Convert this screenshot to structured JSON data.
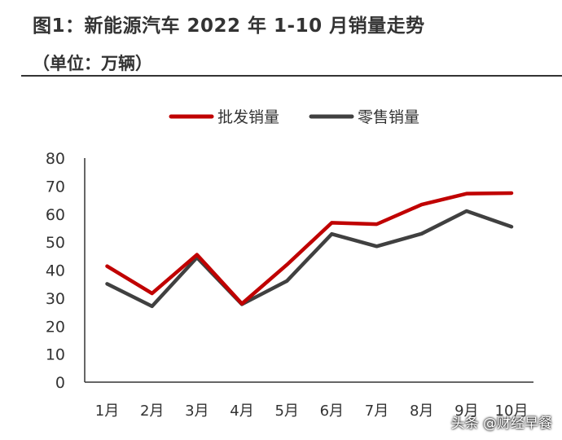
{
  "chart_data": {
    "type": "line",
    "title": "图1：新能源汽车 2022 年 1-10 月销量走势",
    "subtitle": "（单位：万辆）",
    "categories": [
      "1月",
      "2月",
      "3月",
      "4月",
      "5月",
      "6月",
      "7月",
      "8月",
      "9月",
      "10月"
    ],
    "series": [
      {
        "name": "批发销量",
        "color": "#c00000",
        "values": [
          41.4,
          31.7,
          45.5,
          28.0,
          41.9,
          56.9,
          56.4,
          63.4,
          67.3,
          67.5
        ]
      },
      {
        "name": "零售销量",
        "color": "#404040",
        "values": [
          35.1,
          27.1,
          44.5,
          27.8,
          36.1,
          52.9,
          48.5,
          53.0,
          61.1,
          55.5
        ]
      }
    ],
    "ylim": [
      0,
      80
    ],
    "yticks": [
      "0",
      "10",
      "20",
      "30",
      "40",
      "50",
      "60",
      "70",
      "80"
    ],
    "grid": false,
    "legend": "top"
  },
  "watermark": "头条 @财经早餐"
}
